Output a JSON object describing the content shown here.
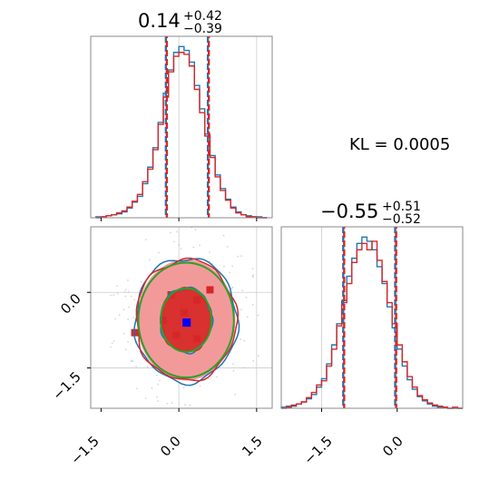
{
  "colors": {
    "blue": "#1f77b4",
    "red": "#d62728",
    "green": "#2ca02c",
    "fill_light": "#f29a9a",
    "fill_dark": "#d93030",
    "grid": "#cccccc",
    "frame": "#888888"
  },
  "kl_label": "KL = 0.0005",
  "chart_data": [
    {
      "type": "histogram",
      "panel": "marginal-x",
      "title": {
        "median": "0.14",
        "upper": "+0.42",
        "lower": "−0.39"
      },
      "xlim": [
        -1.7,
        1.8
      ],
      "quantile_lines": [
        -0.25,
        0.56
      ],
      "bin_centers": [
        -1.55,
        -1.45,
        -1.35,
        -1.25,
        -1.15,
        -1.05,
        -0.95,
        -0.85,
        -0.75,
        -0.65,
        -0.55,
        -0.45,
        -0.35,
        -0.25,
        -0.15,
        -0.05,
        0.05,
        0.15,
        0.25,
        0.35,
        0.45,
        0.55,
        0.65,
        0.75,
        0.85,
        0.95,
        1.05,
        1.15,
        1.25,
        1.35,
        1.45,
        1.55,
        1.65
      ],
      "series": [
        {
          "name": "blue",
          "values": [
            1,
            1,
            2,
            3,
            4,
            6,
            10,
            16,
            22,
            35,
            52,
            72,
            98,
            128,
            152,
            170,
            176,
            172,
            160,
            136,
            112,
            86,
            64,
            44,
            30,
            19,
            11,
            6,
            3,
            2,
            1,
            1,
            0
          ]
        },
        {
          "name": "red",
          "values": [
            0,
            1,
            2,
            3,
            5,
            7,
            11,
            17,
            24,
            37,
            50,
            70,
            96,
            124,
            150,
            166,
            170,
            168,
            156,
            132,
            108,
            84,
            62,
            42,
            28,
            18,
            10,
            5,
            3,
            1,
            1,
            0,
            0
          ]
        }
      ]
    },
    {
      "type": "contour",
      "panel": "joint",
      "xlim": [
        -1.7,
        1.8
      ],
      "ylim": [
        -2.3,
        1.3
      ],
      "x_ticks": [
        "−1.5",
        "0.0",
        "1.5"
      ],
      "y_ticks": [
        "0.0",
        "−1.5"
      ],
      "center": [
        0.14,
        -0.55
      ],
      "ellipses": [
        {
          "rx": 0.95,
          "ry": 1.2,
          "level": "outer"
        },
        {
          "rx": 0.48,
          "ry": 0.63,
          "level": "inner"
        }
      ],
      "scatter_points": [
        [
          -0.15,
          -0.05
        ],
        [
          0.35,
          -0.15
        ],
        [
          -0.3,
          -0.55
        ],
        [
          0.1,
          -0.4
        ],
        [
          -0.05,
          -0.85
        ],
        [
          0.35,
          -0.92
        ],
        [
          -0.85,
          -0.8
        ],
        [
          0.6,
          0.05
        ]
      ],
      "peak_point": [
        0.15,
        -0.6
      ]
    },
    {
      "type": "histogram",
      "panel": "marginal-y",
      "title": {
        "median": "−0.55",
        "upper": "+0.51",
        "lower": "−0.52"
      },
      "xlim": [
        -2.3,
        1.3
      ],
      "x_ticks": [
        "−1.5",
        "0.0"
      ],
      "quantile_lines": [
        -1.07,
        -0.04
      ],
      "bin_centers": [
        -2.25,
        -2.15,
        -2.05,
        -1.95,
        -1.85,
        -1.75,
        -1.65,
        -1.55,
        -1.45,
        -1.35,
        -1.25,
        -1.15,
        -1.05,
        -0.95,
        -0.85,
        -0.75,
        -0.65,
        -0.55,
        -0.45,
        -0.35,
        -0.25,
        -0.15,
        -0.05,
        0.05,
        0.15,
        0.25,
        0.35,
        0.45,
        0.55,
        0.65,
        0.75,
        0.85,
        0.95,
        1.05,
        1.15,
        1.25
      ],
      "series": [
        {
          "name": "blue",
          "values": [
            1,
            2,
            2,
            4,
            6,
            9,
            13,
            20,
            28,
            42,
            60,
            80,
            102,
            125,
            142,
            156,
            162,
            158,
            150,
            134,
            118,
            96,
            76,
            56,
            40,
            27,
            18,
            11,
            7,
            4,
            2,
            1,
            1,
            0,
            0,
            0
          ]
        },
        {
          "name": "red",
          "values": [
            0,
            1,
            3,
            4,
            6,
            10,
            15,
            22,
            26,
            40,
            56,
            78,
            100,
            118,
            138,
            150,
            156,
            150,
            158,
            140,
            120,
            100,
            80,
            60,
            44,
            30,
            20,
            12,
            8,
            5,
            3,
            2,
            1,
            0,
            1,
            0
          ]
        }
      ]
    }
  ]
}
